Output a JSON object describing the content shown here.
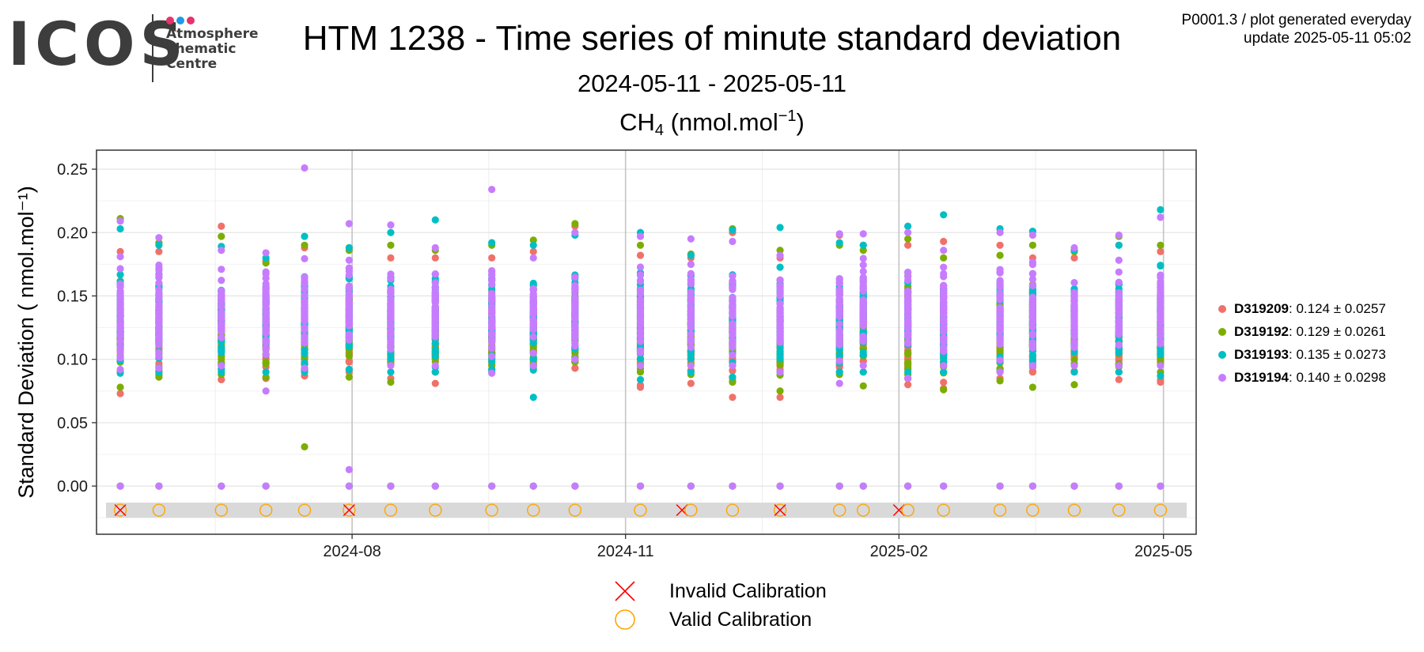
{
  "logo": {
    "word": "ICOS",
    "line1": "Atmosphere",
    "line2": "Thematic",
    "line3": "Centre",
    "dot_colors": [
      "#e6336b",
      "#1e9be6",
      "#e6336b"
    ]
  },
  "header": {
    "plot_id": "P0001.3 / plot generated everyday",
    "update": "update  2025-05-11 05:02",
    "title": "HTM 1238 - Time series of minute standard deviation",
    "subtitle": "2024-05-11 - 2025-05-11",
    "panel_title_base": "CH",
    "panel_title_sub": "4",
    "panel_title_unit": " (nmol.mol",
    "panel_title_sup": "−1",
    "panel_title_close": ")"
  },
  "legend": {
    "series": [
      {
        "name": "D319209",
        "stats": ": 0.124 ± 0.0257",
        "color": "#f0716a"
      },
      {
        "name": "D319192",
        "stats": ": 0.129 ± 0.0261",
        "color": "#7cae00"
      },
      {
        "name": "D319193",
        "stats": ": 0.135 ± 0.0273",
        "color": "#00bfc4"
      },
      {
        "name": "D319194",
        "stats": ": 0.140 ± 0.0298",
        "color": "#c77cff"
      }
    ],
    "invalid_label": "Invalid Calibration",
    "valid_label": "Valid Calibration",
    "invalid_color": "#ff0000",
    "valid_color": "#ffa500"
  },
  "chart_data": {
    "type": "scatter",
    "title": "HTM 1238 - Time series of minute standard deviation",
    "subtitle": "2024-05-11 - 2025-05-11",
    "ylabel": "Standard Deviation ( nmol.mol⁻¹)",
    "xlim": [
      "2024-05-07",
      "2025-05-12"
    ],
    "ylim": [
      -0.038,
      0.265
    ],
    "yticks": [
      0.0,
      0.05,
      0.1,
      0.15,
      0.2,
      0.25
    ],
    "ytick_labels": [
      "0.00",
      "0.05",
      "0.10",
      "0.15",
      "0.20",
      "0.25"
    ],
    "xticks": [
      "2024-08-01",
      "2024-11-01",
      "2025-02-01",
      "2025-05-01"
    ],
    "xtick_labels": [
      "2024-08",
      "2024-11",
      "2025-02",
      "2025-05"
    ],
    "grid": true,
    "legend_position": "right",
    "clusters": [
      {
        "date": "2024-05-15",
        "min": [
          0.073,
          0.078,
          0.089,
          0.092
        ],
        "max": [
          0.185,
          0.211,
          0.203,
          0.209
        ],
        "zero": true
      },
      {
        "date": "2024-05-28",
        "min": [
          0.088,
          0.086,
          0.09,
          0.093
        ],
        "max": [
          0.185,
          0.192,
          0.19,
          0.196
        ],
        "zero": true
      },
      {
        "date": "2024-06-18",
        "min": [
          0.084,
          0.088,
          0.09,
          0.095
        ],
        "max": [
          0.205,
          0.197,
          0.189,
          0.186
        ],
        "zero": true
      },
      {
        "date": "2024-07-03",
        "min": [
          0.085,
          0.086,
          0.09,
          0.075
        ],
        "max": [
          0.178,
          0.176,
          0.18,
          0.184
        ],
        "zero": true
      },
      {
        "date": "2024-07-16",
        "min": [
          0.087,
          0.031,
          0.09,
          0.093
        ],
        "max": [
          0.188,
          0.19,
          0.197,
          0.251
        ],
        "zero": false
      },
      {
        "date": "2024-07-31",
        "min": [
          0.09,
          0.086,
          0.092,
          0.013
        ],
        "max": [
          0.188,
          0.186,
          0.188,
          0.207
        ],
        "zero": true
      },
      {
        "date": "2024-08-14",
        "min": [
          0.085,
          0.082,
          0.09,
          0.095
        ],
        "max": [
          0.18,
          0.19,
          0.2,
          0.206
        ],
        "zero": true
      },
      {
        "date": "2024-08-29",
        "min": [
          0.081,
          0.09,
          0.09,
          0.095
        ],
        "max": [
          0.18,
          0.186,
          0.21,
          0.188
        ],
        "zero": true
      },
      {
        "date": "2024-09-17",
        "min": [
          0.092,
          0.095,
          0.09,
          0.089
        ],
        "max": [
          0.18,
          0.19,
          0.192,
          0.234
        ],
        "zero": true
      },
      {
        "date": "2024-10-01",
        "min": [
          0.095,
          0.093,
          0.07,
          0.095
        ],
        "max": [
          0.185,
          0.194,
          0.19,
          0.18
        ],
        "zero": true
      },
      {
        "date": "2024-10-15",
        "min": [
          0.093,
          0.098,
          0.1,
          0.1
        ],
        "max": [
          0.205,
          0.207,
          0.198,
          0.2
        ],
        "zero": true
      },
      {
        "date": "2024-11-06",
        "min": [
          0.078,
          0.09,
          0.084,
          0.095
        ],
        "max": [
          0.182,
          0.19,
          0.2,
          0.197
        ],
        "zero": true
      },
      {
        "date": "2024-11-23",
        "min": [
          0.081,
          0.088,
          0.09,
          0.095
        ],
        "max": [
          0.18,
          0.183,
          0.182,
          0.195
        ],
        "zero": true
      },
      {
        "date": "2024-12-07",
        "min": [
          0.07,
          0.082,
          0.086,
          0.095
        ],
        "max": [
          0.2,
          0.203,
          0.202,
          0.193
        ],
        "zero": true
      },
      {
        "date": "2024-12-23",
        "min": [
          0.07,
          0.075,
          0.09,
          0.09
        ],
        "max": [
          0.18,
          0.186,
          0.204,
          0.182
        ],
        "zero": true
      },
      {
        "date": "2025-01-12",
        "min": [
          0.09,
          0.088,
          0.09,
          0.081
        ],
        "max": [
          0.198,
          0.19,
          0.192,
          0.199
        ],
        "zero": true
      },
      {
        "date": "2025-01-20",
        "min": [
          0.09,
          0.079,
          0.09,
          0.095
        ],
        "max": [
          0.19,
          0.186,
          0.19,
          0.199
        ],
        "zero": true
      },
      {
        "date": "2025-02-04",
        "min": [
          0.08,
          0.088,
          0.09,
          0.085
        ],
        "max": [
          0.19,
          0.195,
          0.205,
          0.2
        ],
        "zero": true
      },
      {
        "date": "2025-02-16",
        "min": [
          0.077,
          0.076,
          0.09,
          0.095
        ],
        "max": [
          0.193,
          0.18,
          0.214,
          0.186
        ],
        "zero": true
      },
      {
        "date": "2025-03-07",
        "min": [
          0.085,
          0.083,
          0.09,
          0.09
        ],
        "max": [
          0.19,
          0.182,
          0.203,
          0.2
        ],
        "zero": true
      },
      {
        "date": "2025-03-18",
        "min": [
          0.09,
          0.078,
          0.095,
          0.095
        ],
        "max": [
          0.18,
          0.19,
          0.201,
          0.198
        ],
        "zero": true
      },
      {
        "date": "2025-04-01",
        "min": [
          0.09,
          0.08,
          0.09,
          0.095
        ],
        "max": [
          0.18,
          0.185,
          0.186,
          0.188
        ],
        "zero": true
      },
      {
        "date": "2025-04-16",
        "min": [
          0.084,
          0.09,
          0.09,
          0.095
        ],
        "max": [
          0.19,
          0.197,
          0.19,
          0.198
        ],
        "zero": true
      },
      {
        "date": "2025-04-30",
        "min": [
          0.082,
          0.09,
          0.087,
          0.095
        ],
        "max": [
          0.185,
          0.19,
          0.218,
          0.212
        ],
        "zero": true
      }
    ],
    "calibrations": [
      {
        "date": "2024-05-15",
        "valid": true
      },
      {
        "date": "2024-05-15",
        "valid": false
      },
      {
        "date": "2024-05-28",
        "valid": true
      },
      {
        "date": "2024-06-18",
        "valid": true
      },
      {
        "date": "2024-07-03",
        "valid": true
      },
      {
        "date": "2024-07-16",
        "valid": true
      },
      {
        "date": "2024-07-31",
        "valid": true
      },
      {
        "date": "2024-07-31",
        "valid": false
      },
      {
        "date": "2024-08-14",
        "valid": true
      },
      {
        "date": "2024-08-29",
        "valid": true
      },
      {
        "date": "2024-09-17",
        "valid": true
      },
      {
        "date": "2024-10-01",
        "valid": true
      },
      {
        "date": "2024-10-15",
        "valid": true
      },
      {
        "date": "2024-11-06",
        "valid": true
      },
      {
        "date": "2024-11-20",
        "valid": false
      },
      {
        "date": "2024-11-23",
        "valid": true
      },
      {
        "date": "2024-12-07",
        "valid": true
      },
      {
        "date": "2024-12-23",
        "valid": true
      },
      {
        "date": "2024-12-23",
        "valid": false
      },
      {
        "date": "2025-01-12",
        "valid": true
      },
      {
        "date": "2025-01-20",
        "valid": true
      },
      {
        "date": "2025-02-01",
        "valid": false
      },
      {
        "date": "2025-02-04",
        "valid": true
      },
      {
        "date": "2025-02-16",
        "valid": true
      },
      {
        "date": "2025-03-07",
        "valid": true
      },
      {
        "date": "2025-03-18",
        "valid": true
      },
      {
        "date": "2025-04-01",
        "valid": true
      },
      {
        "date": "2025-04-16",
        "valid": true
      },
      {
        "date": "2025-04-30",
        "valid": true
      }
    ]
  }
}
